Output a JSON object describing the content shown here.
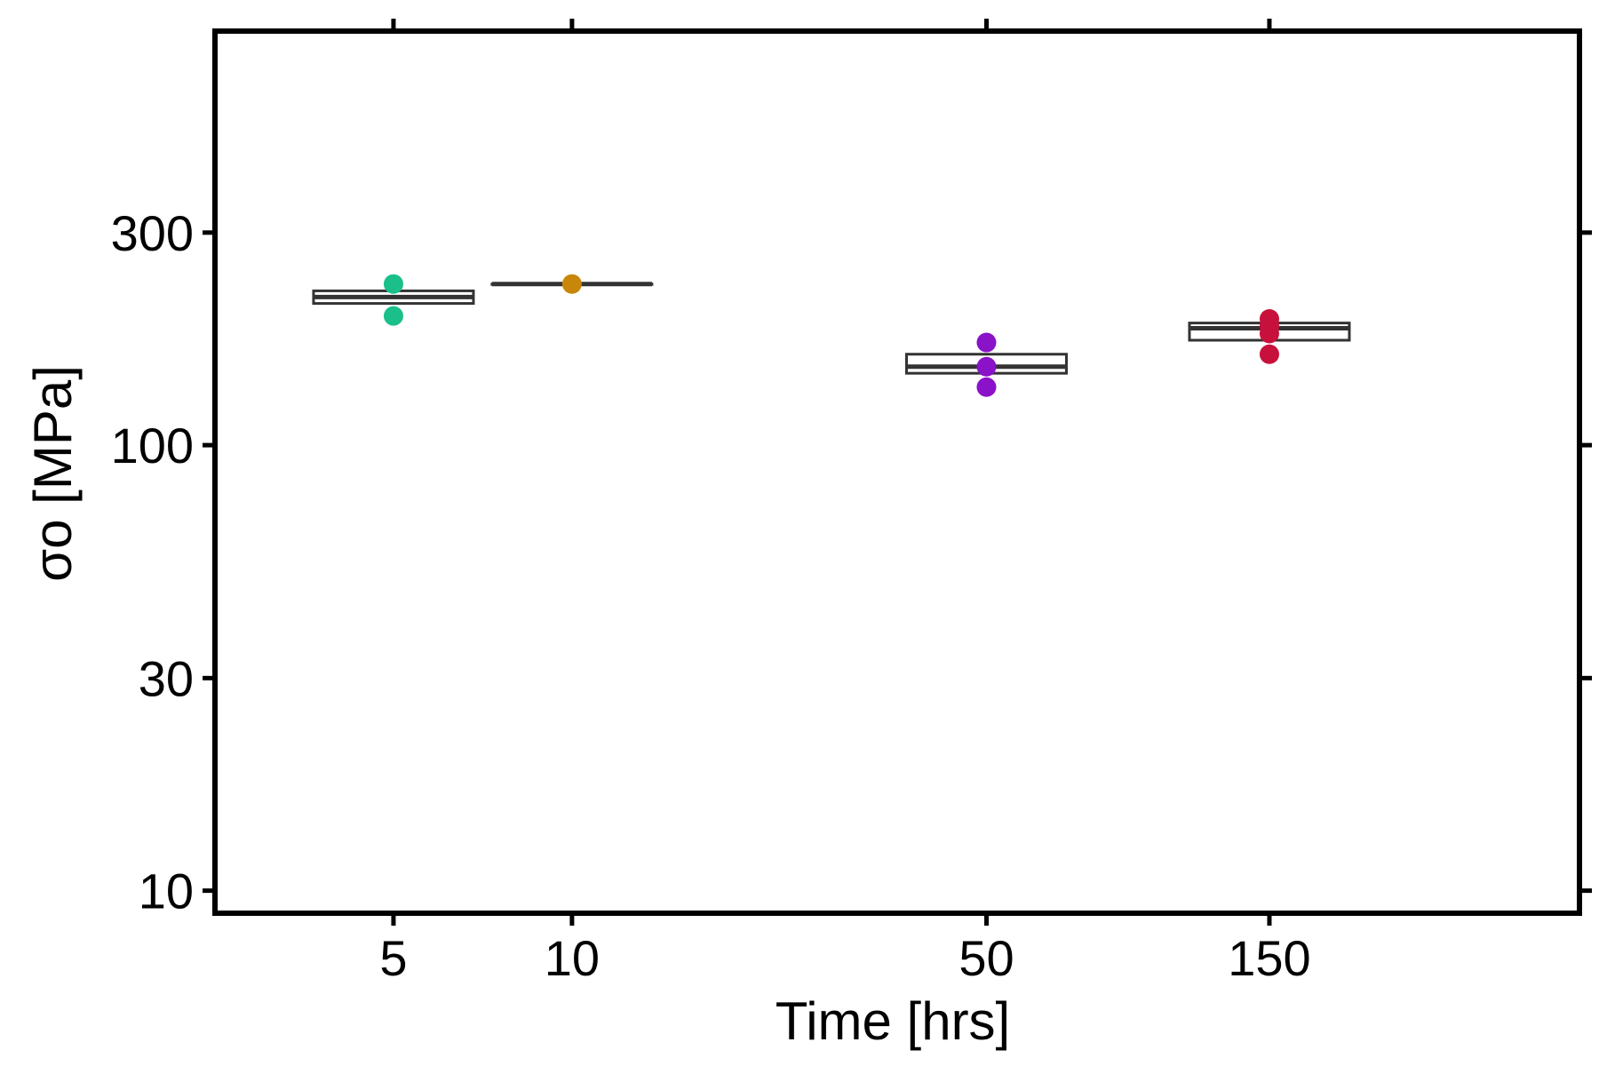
{
  "chart_data": {
    "type": "box",
    "xlabel": "Time [hrs]",
    "ylabel": "σo [MPa]",
    "y_scale": "log",
    "y_ticks": [
      10,
      30,
      100,
      300
    ],
    "x_ticks": [
      5,
      10,
      50,
      150
    ],
    "x_scale": "log",
    "ylim": [
      8.9,
      850
    ],
    "xlim": [
      2.5,
      500
    ],
    "grid": false,
    "groups": [
      {
        "x": 5,
        "color": "#1abf8a",
        "points": [
          230,
          195
        ],
        "box": {
          "q1": 208,
          "median": 215,
          "q3": 222
        }
      },
      {
        "x": 10,
        "color": "#c8860a",
        "points": [
          230
        ],
        "box": {
          "q1": 230,
          "median": 230,
          "q3": 230
        }
      },
      {
        "x": 50,
        "color": "#8a12c8",
        "points": [
          170,
          150,
          135
        ],
        "box": {
          "q1": 145,
          "median": 150,
          "q3": 160
        }
      },
      {
        "x": 150,
        "color": "#c8103c",
        "points": [
          192,
          185,
          178,
          160
        ],
        "box": {
          "q1": 172,
          "median": 183,
          "q3": 188
        }
      }
    ]
  }
}
